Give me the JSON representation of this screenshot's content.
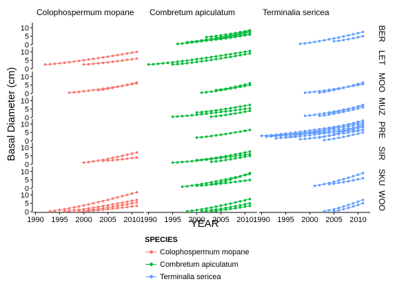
{
  "chart_data": {
    "type": "line",
    "title": "",
    "xlabel": "YEAR",
    "ylabel": "Basal Diameter (cm)",
    "xlim": [
      1989.5,
      2012.5
    ],
    "x_ticks": [
      1990,
      1995,
      2000,
      2005,
      2010
    ],
    "columns": [
      "Colophospermum mopane",
      "Combretum apiculatum",
      "Terminalia sericea"
    ],
    "rows": [
      "BER",
      "LET",
      "MOO",
      "MUZ",
      "PRE",
      "SIR",
      "SKU",
      "WOO"
    ],
    "row_ylim": [
      0,
      13
    ],
    "y_ticks": [
      0,
      5,
      10
    ],
    "legend": {
      "title": "SPECIES",
      "placement": "bottom",
      "entries": [
        {
          "name": "Colophospermum mopane",
          "color": "#F8766D"
        },
        {
          "name": "Combretum apiculatum",
          "color": "#00BA38"
        },
        {
          "name": "Terminalia sericea",
          "color": "#619CFF"
        }
      ]
    },
    "series": [
      {
        "col": 1,
        "row": 0,
        "x": [
          1996,
          2011
        ],
        "y": [
          0.5,
          6.5
        ]
      },
      {
        "col": 1,
        "row": 0,
        "x": [
          1998,
          2011
        ],
        "y": [
          1.5,
          8
        ]
      },
      {
        "col": 1,
        "row": 0,
        "x": [
          2002,
          2011
        ],
        "y": [
          2.5,
          6
        ]
      },
      {
        "col": 1,
        "row": 0,
        "x": [
          2002,
          2011
        ],
        "y": [
          4.5,
          8.5
        ]
      },
      {
        "col": 1,
        "row": 0,
        "x": [
          2003,
          2011
        ],
        "y": [
          3.5,
          7.5
        ]
      },
      {
        "col": 2,
        "row": 0,
        "x": [
          1998,
          2011
        ],
        "y": [
          0.5,
          7.5
        ]
      },
      {
        "col": 2,
        "row": 0,
        "x": [
          2005,
          2011
        ],
        "y": [
          2,
          5
        ]
      },
      {
        "col": 0,
        "row": 1,
        "x": [
          1992,
          2011
        ],
        "y": [
          2.5,
          10
        ]
      },
      {
        "col": 0,
        "row": 1,
        "x": [
          2000,
          2011
        ],
        "y": [
          2.5,
          6
        ]
      },
      {
        "col": 1,
        "row": 1,
        "x": [
          1990,
          2011
        ],
        "y": [
          2.5,
          10.5
        ]
      },
      {
        "col": 1,
        "row": 1,
        "x": [
          1995,
          2011
        ],
        "y": [
          2.5,
          9
        ]
      },
      {
        "col": 0,
        "row": 2,
        "x": [
          1997,
          2011
        ],
        "y": [
          0.5,
          6
        ]
      },
      {
        "col": 0,
        "row": 2,
        "x": [
          2003,
          2011
        ],
        "y": [
          2,
          6.5
        ]
      },
      {
        "col": 1,
        "row": 2,
        "x": [
          2001,
          2011
        ],
        "y": [
          0.5,
          5
        ]
      },
      {
        "col": 1,
        "row": 2,
        "x": [
          2004,
          2011
        ],
        "y": [
          2,
          6
        ]
      },
      {
        "col": 2,
        "row": 2,
        "x": [
          1999,
          2011
        ],
        "y": [
          0.5,
          5.5
        ]
      },
      {
        "col": 2,
        "row": 2,
        "x": [
          2002,
          2011
        ],
        "y": [
          0.5,
          6.5
        ]
      },
      {
        "col": 1,
        "row": 3,
        "x": [
          1995,
          2011
        ],
        "y": [
          0.5,
          5.5
        ]
      },
      {
        "col": 1,
        "row": 3,
        "x": [
          2000,
          2011
        ],
        "y": [
          3,
          7.5
        ]
      },
      {
        "col": 1,
        "row": 3,
        "x": [
          2003,
          2011
        ],
        "y": [
          0.5,
          4
        ]
      },
      {
        "col": 2,
        "row": 3,
        "x": [
          1999,
          2011
        ],
        "y": [
          1,
          7
        ]
      },
      {
        "col": 2,
        "row": 3,
        "x": [
          2002,
          2011
        ],
        "y": [
          1,
          6
        ]
      },
      {
        "col": 2,
        "row": 3,
        "x": [
          2004,
          2011
        ],
        "y": [
          2.5,
          7.5
        ]
      },
      {
        "col": 1,
        "row": 4,
        "x": [
          2000,
          2011
        ],
        "y": [
          2,
          6.5
        ]
      },
      {
        "col": 2,
        "row": 4,
        "x": [
          1990,
          2011
        ],
        "y": [
          3,
          6.5
        ]
      },
      {
        "col": 2,
        "row": 4,
        "x": [
          1990,
          2011
        ],
        "y": [
          3,
          11
        ]
      },
      {
        "col": 2,
        "row": 4,
        "x": [
          1991,
          2011
        ],
        "y": [
          2.5,
          8.5
        ]
      },
      {
        "col": 2,
        "row": 4,
        "x": [
          1992,
          2011
        ],
        "y": [
          3,
          10
        ]
      },
      {
        "col": 2,
        "row": 4,
        "x": [
          1993,
          2011
        ],
        "y": [
          1.5,
          12
        ]
      },
      {
        "col": 2,
        "row": 4,
        "x": [
          1995,
          2011
        ],
        "y": [
          2,
          8
        ]
      },
      {
        "col": 2,
        "row": 4,
        "x": [
          1998,
          2011
        ],
        "y": [
          1,
          6.5
        ]
      },
      {
        "col": 2,
        "row": 4,
        "x": [
          2002,
          2011
        ],
        "y": [
          2,
          9.5
        ]
      },
      {
        "col": 2,
        "row": 4,
        "x": [
          2003,
          2011
        ],
        "y": [
          0.5,
          5
        ]
      },
      {
        "col": 0,
        "row": 5,
        "x": [
          2000,
          2011
        ],
        "y": [
          1,
          7
        ]
      },
      {
        "col": 0,
        "row": 5,
        "x": [
          2004,
          2011
        ],
        "y": [
          2,
          4
        ]
      },
      {
        "col": 1,
        "row": 5,
        "x": [
          1995,
          2011
        ],
        "y": [
          1,
          6
        ]
      },
      {
        "col": 1,
        "row": 5,
        "x": [
          2000,
          2011
        ],
        "y": [
          2.5,
          7.5
        ]
      },
      {
        "col": 1,
        "row": 5,
        "x": [
          2003,
          2011
        ],
        "y": [
          1.5,
          5
        ]
      },
      {
        "col": 1,
        "row": 6,
        "x": [
          1997,
          2011
        ],
        "y": [
          1,
          8.5
        ]
      },
      {
        "col": 1,
        "row": 6,
        "x": [
          2000,
          2011
        ],
        "y": [
          1.5,
          5
        ]
      },
      {
        "col": 1,
        "row": 6,
        "x": [
          2003,
          2011
        ],
        "y": [
          2.5,
          9
        ]
      },
      {
        "col": 2,
        "row": 6,
        "x": [
          2001,
          2011
        ],
        "y": [
          1.5,
          9
        ]
      },
      {
        "col": 2,
        "row": 6,
        "x": [
          2004,
          2011
        ],
        "y": [
          2.5,
          6
        ]
      },
      {
        "col": 0,
        "row": 7,
        "x": [
          1993,
          2011
        ],
        "y": [
          0.3,
          11.5
        ]
      },
      {
        "col": 0,
        "row": 7,
        "x": [
          1996,
          2011
        ],
        "y": [
          0.3,
          7
        ]
      },
      {
        "col": 0,
        "row": 7,
        "x": [
          1999,
          2011
        ],
        "y": [
          0.3,
          5.5
        ]
      },
      {
        "col": 0,
        "row": 7,
        "x": [
          2000,
          2011
        ],
        "y": [
          0.3,
          3.5
        ]
      },
      {
        "col": 1,
        "row": 7,
        "x": [
          1998,
          2011
        ],
        "y": [
          0.3,
          7.5
        ]
      },
      {
        "col": 1,
        "row": 7,
        "x": [
          2001,
          2011
        ],
        "y": [
          0.3,
          5
        ]
      },
      {
        "col": 1,
        "row": 7,
        "x": [
          2003,
          2011
        ],
        "y": [
          0.3,
          3.5
        ]
      },
      {
        "col": 2,
        "row": 7,
        "x": [
          2003,
          2011
        ],
        "y": [
          0.3,
          7
        ]
      },
      {
        "col": 2,
        "row": 7,
        "x": [
          2005,
          2011
        ],
        "y": [
          0.3,
          5
        ]
      }
    ]
  }
}
